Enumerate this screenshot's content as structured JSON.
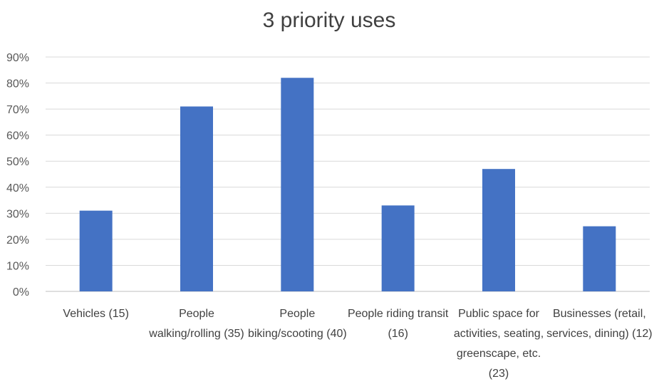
{
  "chart_data": {
    "type": "bar",
    "title": "3 priority uses",
    "xlabel": "",
    "ylabel": "",
    "ylim": [
      0,
      90
    ],
    "y_tick_values": [
      0,
      10,
      20,
      30,
      40,
      50,
      60,
      70,
      80,
      90
    ],
    "y_tick_labels": [
      "0%",
      "10%",
      "20%",
      "30%",
      "40%",
      "50%",
      "60%",
      "70%",
      "80%",
      "90%"
    ],
    "categories": [
      "Vehicles (15)",
      "People walking/rolling (35)",
      "People biking/scooting (40)",
      "People riding transit (16)",
      "Public space for activities, seating, greenscape, etc. (23)",
      "Businesses (retail, services, dining) (12)"
    ],
    "category_lines": [
      [
        "Vehicles (15)"
      ],
      [
        "People",
        "walking/rolling (35)"
      ],
      [
        "People",
        "biking/scooting (40)"
      ],
      [
        "People riding transit",
        "(16)"
      ],
      [
        "Public space for",
        "activities, seating,",
        "greenscape, etc.",
        "(23)"
      ],
      [
        "Businesses (retail,",
        "services, dining) (12)"
      ]
    ],
    "values": [
      31,
      71,
      82,
      33,
      47,
      25
    ],
    "grid": true,
    "legend": "none",
    "bar_color": "#4472c4"
  }
}
